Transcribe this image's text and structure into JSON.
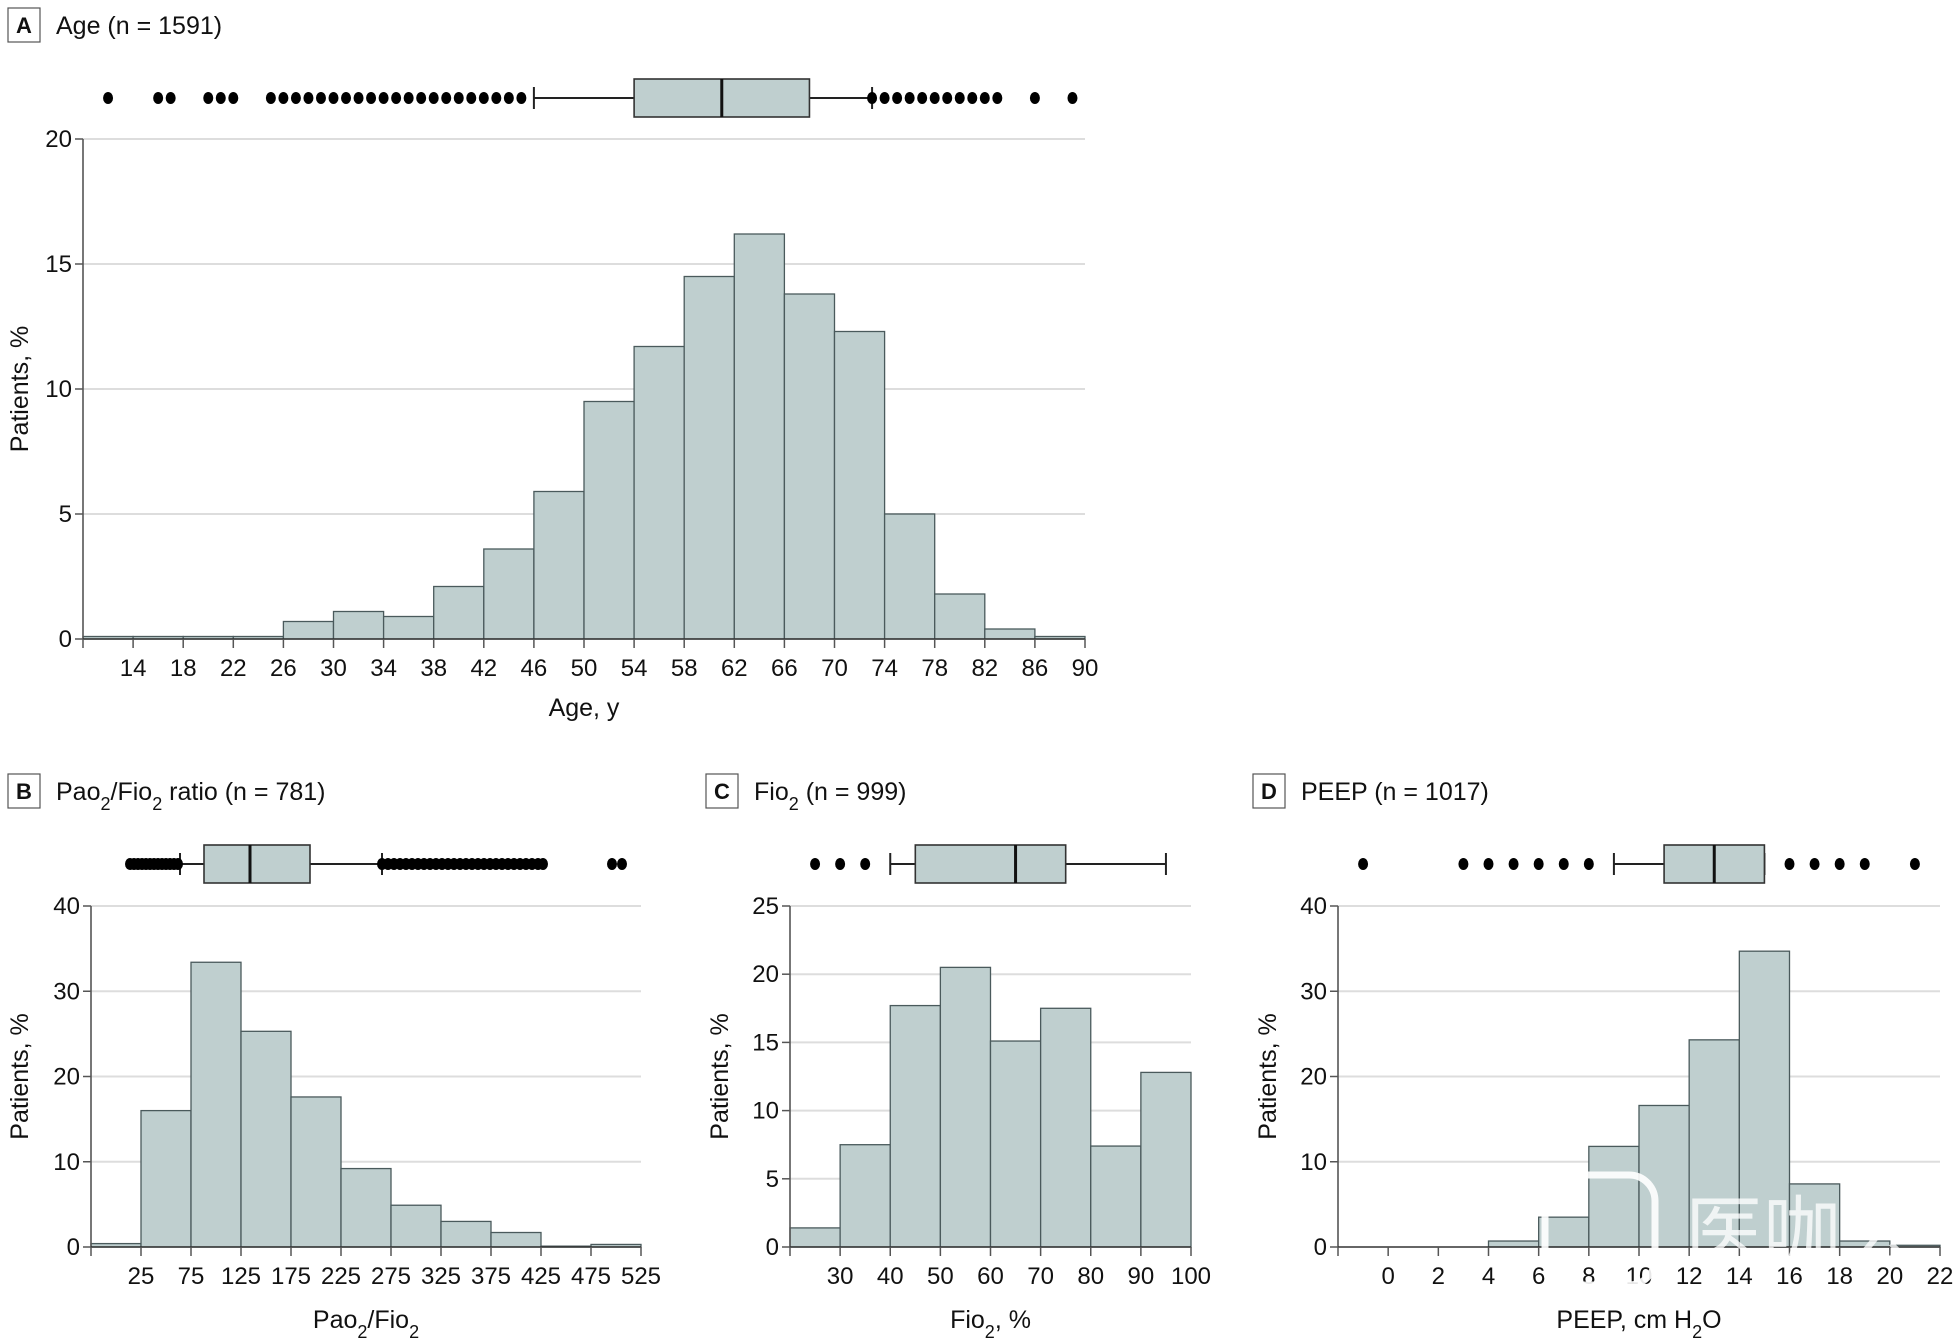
{
  "colors": {
    "bar_fill": "#bfcfcf",
    "bar_stroke": "#4a5a5c",
    "grid": "#dddddd",
    "axis": "#555555",
    "outlier": "#000000",
    "text": "#111111"
  },
  "watermark": {
    "text": "医咖会"
  },
  "chart_data": [
    {
      "id": "A",
      "type": "bar",
      "panel_letter": "A",
      "title": "Age (n = 1591)",
      "xlabel": "Age, y",
      "ylabel": "Patients, %",
      "grid": true,
      "xlim": [
        10,
        90
      ],
      "ylim": [
        0,
        20
      ],
      "yticks": [
        0,
        5,
        10,
        15,
        20
      ],
      "xticks": [
        10,
        14,
        18,
        22,
        26,
        30,
        34,
        38,
        42,
        46,
        50,
        54,
        58,
        62,
        66,
        70,
        74,
        78,
        82,
        86,
        90
      ],
      "xtick_labels": [
        "",
        "14",
        "18",
        "22",
        "26",
        "30",
        "34",
        "38",
        "42",
        "46",
        "50",
        "54",
        "58",
        "62",
        "66",
        "70",
        "74",
        "78",
        "82",
        "86",
        "90"
      ],
      "bins": [
        [
          10,
          14
        ],
        [
          14,
          18
        ],
        [
          18,
          22
        ],
        [
          22,
          26
        ],
        [
          26,
          30
        ],
        [
          30,
          34
        ],
        [
          34,
          38
        ],
        [
          38,
          42
        ],
        [
          42,
          46
        ],
        [
          46,
          50
        ],
        [
          50,
          54
        ],
        [
          54,
          58
        ],
        [
          58,
          62
        ],
        [
          62,
          66
        ],
        [
          66,
          70
        ],
        [
          70,
          74
        ],
        [
          74,
          78
        ],
        [
          78,
          82
        ],
        [
          82,
          86
        ],
        [
          86,
          90
        ]
      ],
      "values": [
        0.1,
        0.1,
        0.1,
        0.1,
        0.7,
        1.1,
        0.9,
        2.1,
        3.6,
        5.9,
        9.5,
        11.7,
        14.5,
        16.2,
        13.8,
        12.3,
        5.0,
        1.8,
        0.4,
        0.1
      ],
      "boxplot": {
        "whisker_low": 46,
        "q1": 54,
        "median": 61,
        "q3": 68,
        "whisker_high": 73,
        "outliers": [
          12,
          16,
          17,
          20,
          21,
          22,
          25,
          26,
          27,
          28,
          29,
          30,
          31,
          32,
          33,
          34,
          35,
          36,
          37,
          38,
          39,
          40,
          41,
          42,
          43,
          44,
          45,
          73,
          74,
          75,
          76,
          77,
          78,
          79,
          80,
          81,
          82,
          83,
          86,
          89
        ]
      }
    },
    {
      "id": "B",
      "type": "bar",
      "panel_letter": "B",
      "title": "PaO2/FIO2 ratio (n = 781)",
      "title_parts": [
        "Pao",
        "2",
        "/Fio",
        "2",
        " ratio (n = 781)"
      ],
      "xlabel": "PaO2/FIO2",
      "xlabel_parts": [
        "Pao",
        "2",
        "/Fio",
        "2",
        ""
      ],
      "ylabel": "Patients, %",
      "grid": true,
      "xlim": [
        -25,
        525
      ],
      "ylim": [
        0,
        40
      ],
      "yticks": [
        0,
        10,
        20,
        30,
        40
      ],
      "xticks": [
        -25,
        25,
        75,
        125,
        175,
        225,
        275,
        325,
        375,
        425,
        475,
        525
      ],
      "xtick_labels": [
        "",
        "25",
        "75",
        "125",
        "175",
        "225",
        "275",
        "325",
        "375",
        "425",
        "475",
        "525"
      ],
      "bins": [
        [
          -25,
          25
        ],
        [
          25,
          75
        ],
        [
          75,
          125
        ],
        [
          125,
          175
        ],
        [
          175,
          225
        ],
        [
          225,
          275
        ],
        [
          275,
          325
        ],
        [
          325,
          375
        ],
        [
          375,
          425
        ],
        [
          425,
          475
        ],
        [
          475,
          525
        ]
      ],
      "values": [
        0.4,
        16.0,
        33.4,
        25.3,
        17.6,
        9.2,
        4.9,
        3.0,
        1.7,
        0.1,
        0.3
      ],
      "boxplot": {
        "whisker_low": 64,
        "q1": 88,
        "median": 134,
        "q3": 194,
        "whisker_high": 266,
        "outliers": [
          14,
          18,
          22,
          26,
          30,
          34,
          38,
          42,
          46,
          50,
          54,
          58,
          62,
          266,
          272,
          278,
          284,
          290,
          296,
          302,
          308,
          314,
          320,
          326,
          332,
          338,
          344,
          350,
          356,
          362,
          368,
          374,
          380,
          386,
          392,
          398,
          404,
          410,
          416,
          422,
          427,
          496,
          506
        ]
      }
    },
    {
      "id": "C",
      "type": "bar",
      "panel_letter": "C",
      "title": "FIO2 (n = 999)",
      "title_parts": [
        "Fio",
        "2",
        " (n = 999)"
      ],
      "xlabel": "FIO2, %",
      "xlabel_parts": [
        "Fio",
        "2",
        ", %"
      ],
      "ylabel": "Patients, %",
      "grid": true,
      "xlim": [
        20,
        100
      ],
      "ylim": [
        0,
        25
      ],
      "yticks": [
        0,
        5,
        10,
        15,
        20,
        25
      ],
      "xticks": [
        20,
        30,
        40,
        50,
        60,
        70,
        80,
        90,
        100
      ],
      "xtick_labels": [
        "",
        "30",
        "40",
        "50",
        "60",
        "70",
        "80",
        "90",
        "100"
      ],
      "bins": [
        [
          20,
          30
        ],
        [
          30,
          40
        ],
        [
          40,
          50
        ],
        [
          50,
          60
        ],
        [
          60,
          70
        ],
        [
          70,
          80
        ],
        [
          80,
          90
        ],
        [
          90,
          100
        ]
      ],
      "values": [
        1.4,
        7.5,
        17.7,
        20.5,
        15.1,
        17.5,
        7.4,
        12.8
      ],
      "boxplot": {
        "whisker_low": 40,
        "q1": 45,
        "median": 65,
        "q3": 75,
        "whisker_high": 95,
        "outliers": [
          25,
          30,
          35
        ]
      }
    },
    {
      "id": "D",
      "type": "bar",
      "panel_letter": "D",
      "title": "PEEP (n = 1017)",
      "xlabel": "PEEP, cm H2O",
      "xlabel_parts": [
        "PEEP, cm H",
        "2",
        "O"
      ],
      "ylabel": "Patients, %",
      "grid": true,
      "xlim": [
        -2,
        22
      ],
      "ylim": [
        0,
        40
      ],
      "yticks": [
        0,
        10,
        20,
        30,
        40
      ],
      "xticks": [
        -2,
        0,
        2,
        4,
        6,
        8,
        10,
        12,
        14,
        16,
        18,
        20,
        22
      ],
      "xtick_labels": [
        "",
        "0",
        "2",
        "4",
        "6",
        "8",
        "10",
        "12",
        "14",
        "16",
        "18",
        "20",
        "22"
      ],
      "bins": [
        [
          -2,
          0
        ],
        [
          0,
          2
        ],
        [
          2,
          4
        ],
        [
          4,
          6
        ],
        [
          6,
          8
        ],
        [
          8,
          10
        ],
        [
          10,
          12
        ],
        [
          12,
          14
        ],
        [
          14,
          16
        ],
        [
          16,
          18
        ],
        [
          18,
          20
        ],
        [
          20,
          22
        ]
      ],
      "values": [
        0,
        0,
        0,
        0.7,
        3.5,
        11.8,
        16.6,
        24.3,
        34.7,
        7.4,
        0.7,
        0.2
      ],
      "boxplot": {
        "whisker_low": 9,
        "q1": 11,
        "median": 13,
        "q3": 15,
        "whisker_high": 15,
        "outliers": [
          -1,
          3,
          4,
          5,
          6,
          7,
          8,
          16,
          17,
          18,
          19,
          21
        ]
      }
    }
  ]
}
